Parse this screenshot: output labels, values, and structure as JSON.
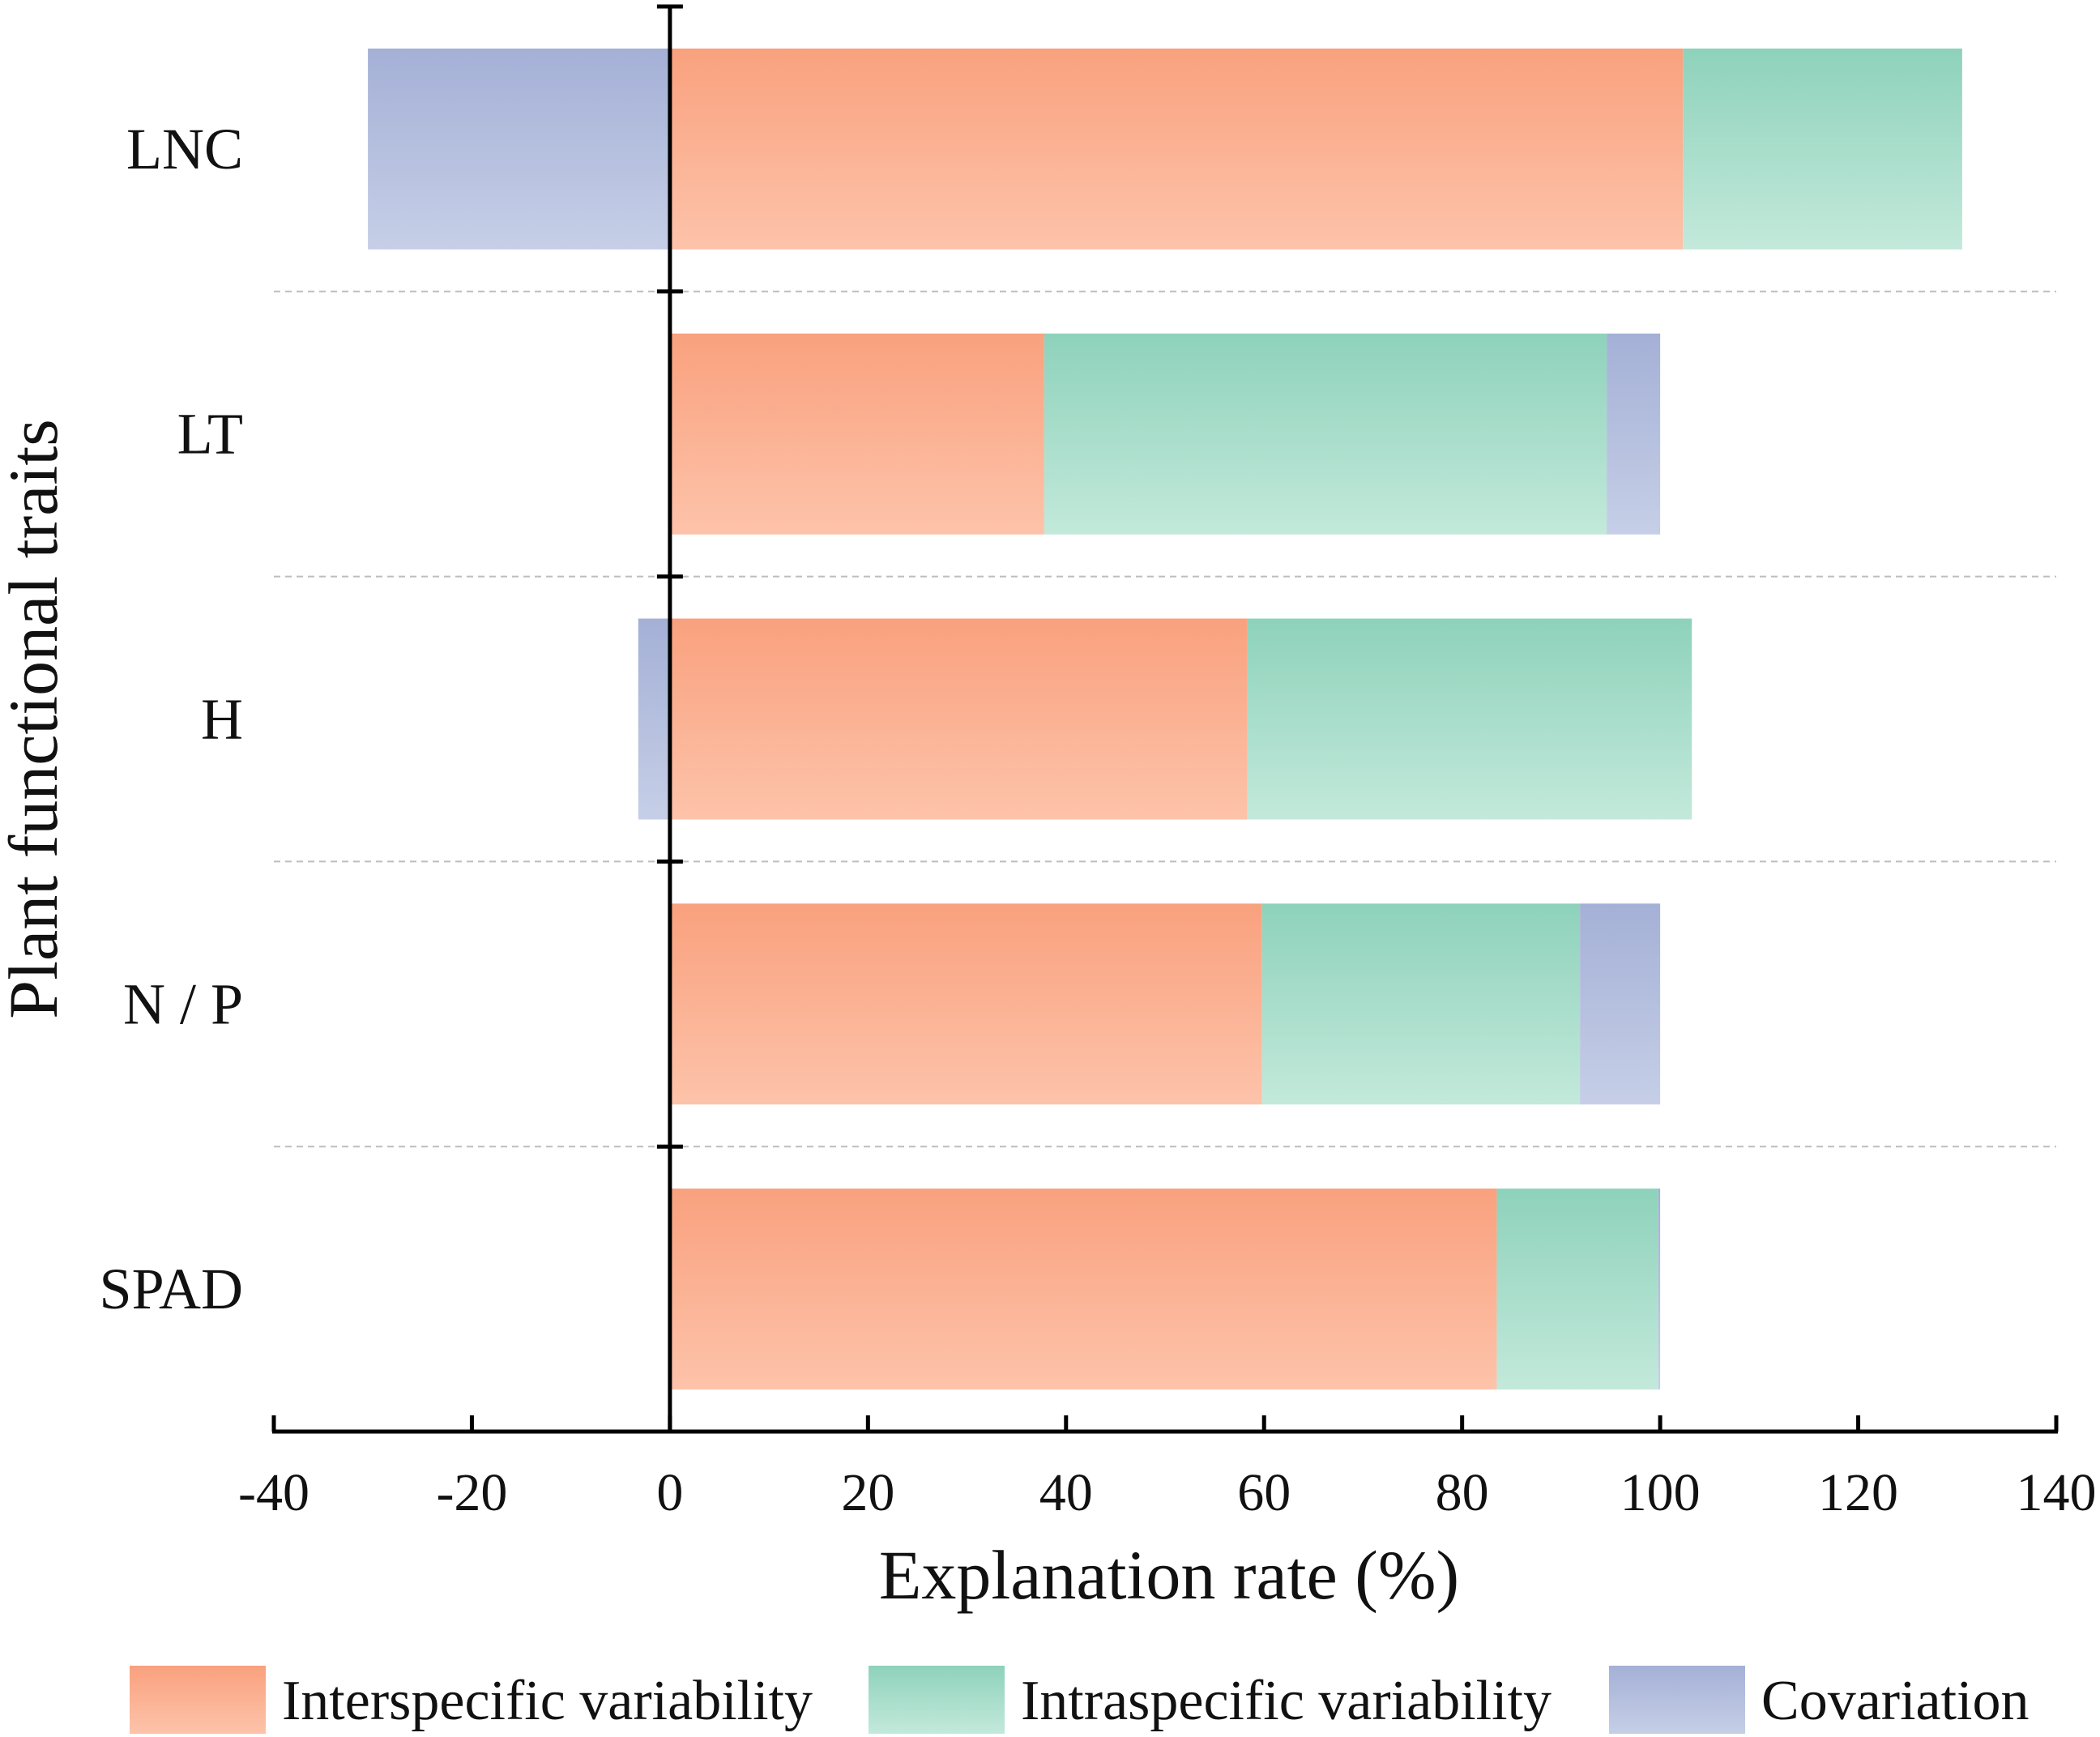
{
  "chart_data": {
    "type": "bar",
    "orientation": "horizontal",
    "stacked": true,
    "title": "",
    "xlabel": "Explanation rate (%)",
    "ylabel": "Plant functional traits",
    "xlim": [
      -40,
      140
    ],
    "xticks": [
      "-40",
      "-20",
      "0",
      "20",
      "40",
      "60",
      "80",
      "100",
      "120",
      "140"
    ],
    "xtick_values": [
      -40,
      -20,
      0,
      20,
      40,
      60,
      80,
      100,
      120,
      140
    ],
    "categories": [
      "LNC",
      "LT",
      "H",
      "N / P",
      "SPAD"
    ],
    "series": [
      {
        "name": "Interspecific variability",
        "values": [
          102.3,
          37.8,
          58.3,
          59.8,
          83.5
        ]
      },
      {
        "name": "Intraspecific variability",
        "values": [
          28.2,
          56.8,
          44.9,
          32.1,
          16.3
        ]
      },
      {
        "name": "Covariation",
        "values": [
          -30.5,
          5.4,
          -3.2,
          8.1,
          0.2
        ]
      }
    ],
    "legend_position": "bottom",
    "grid": "dashed separators between categories"
  },
  "colors": {
    "interspecific_top": "#f9a17e",
    "interspecific_bottom": "#fdc3aa",
    "intraspecific_top": "#8ed2bb",
    "intraspecific_bottom": "#c3e9db",
    "covariation_top": "#a4b0d6",
    "covariation_bottom": "#c6cfe7",
    "axis": "#000000",
    "separator": "#bdbdbd"
  }
}
